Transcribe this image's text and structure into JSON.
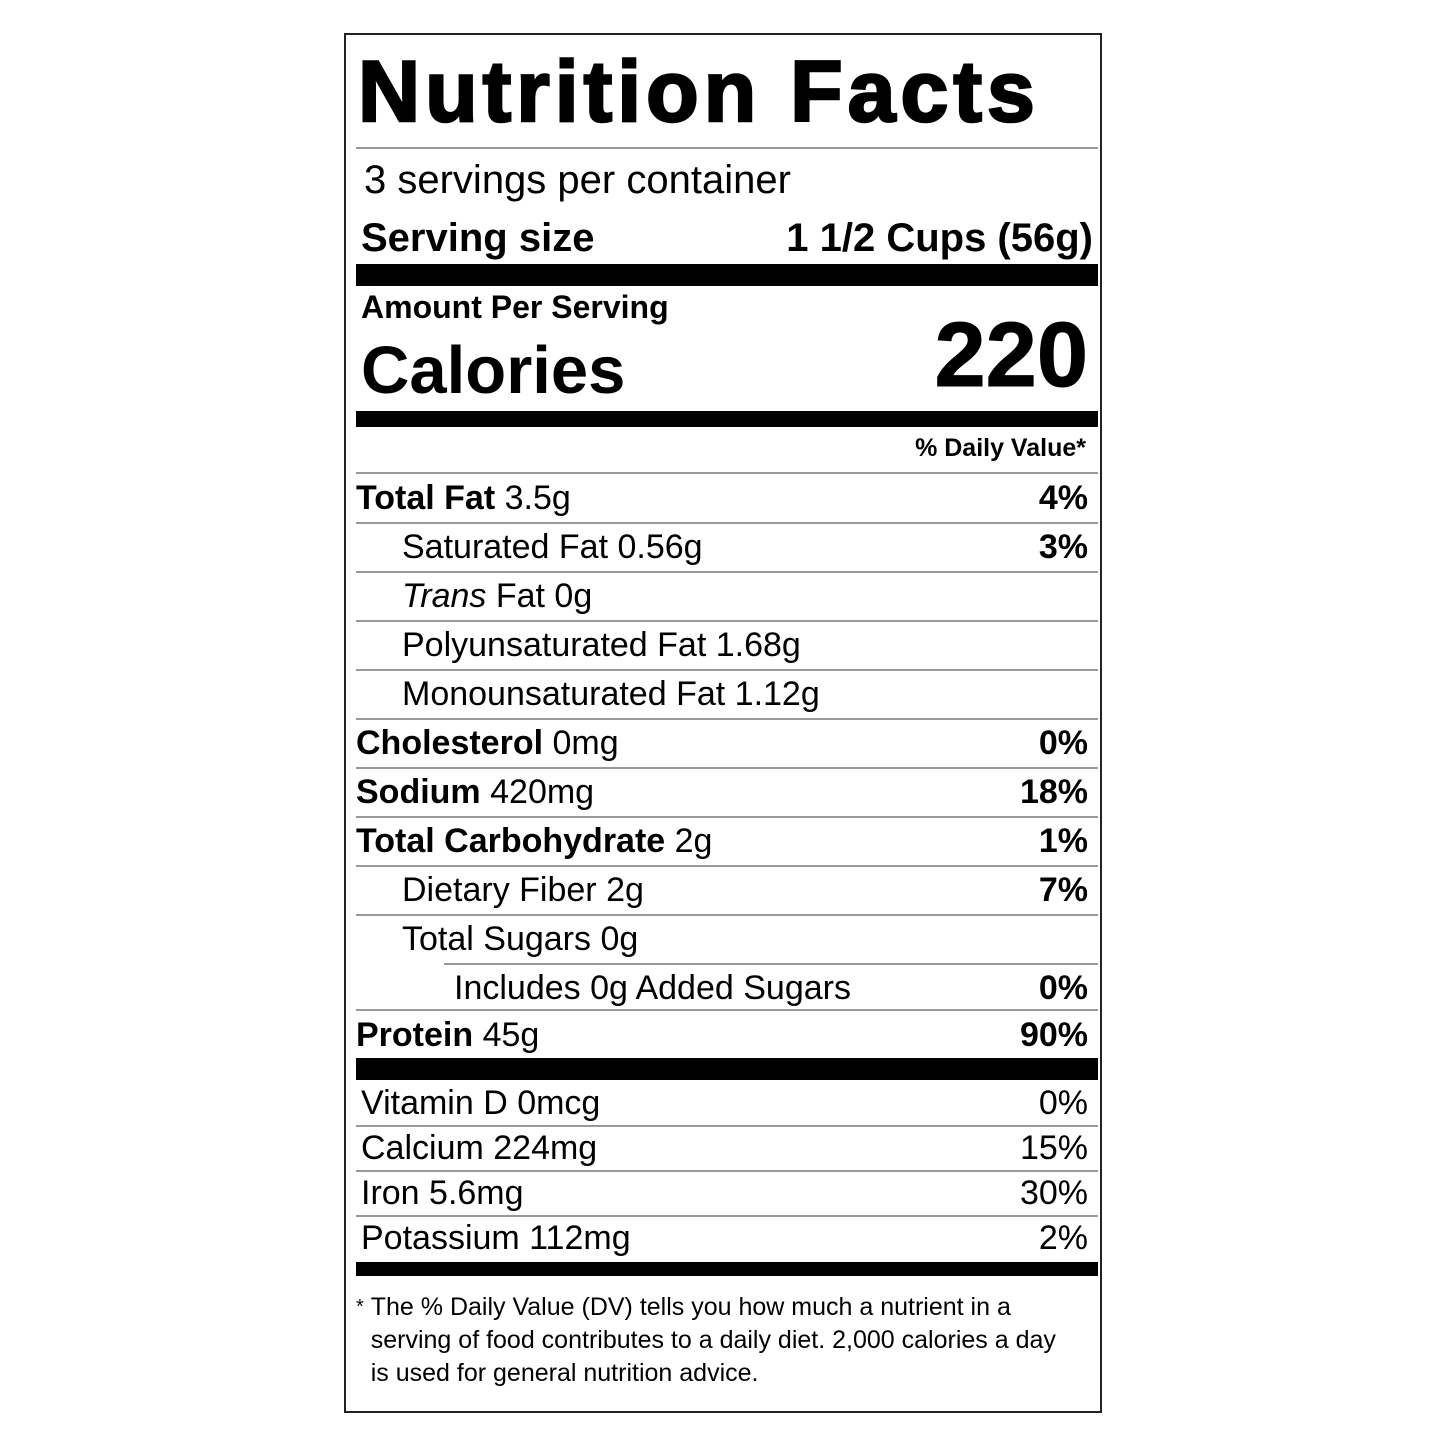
{
  "title": "Nutrition Facts",
  "servings_per_container": "3 servings per container",
  "serving_size_label": "Serving size",
  "serving_size_value": "1 1/2 Cups (56g)",
  "amount_per_serving": "Amount Per Serving",
  "calories_label": "Calories",
  "calories_value": "220",
  "daily_value_header": "% Daily Value*",
  "nutrients": [
    {
      "name": "Total Fat",
      "amount": "3.5g",
      "dv": "4%"
    },
    {
      "name": "Saturated Fat",
      "amount": "0.56g",
      "dv": "3%"
    },
    {
      "name_italic": "Trans",
      "name": "Fat",
      "amount": "0g",
      "dv": ""
    },
    {
      "name": "Polyunsaturated Fat",
      "amount": "1.68g",
      "dv": ""
    },
    {
      "name": "Monounsaturated Fat",
      "amount": "1.12g",
      "dv": ""
    },
    {
      "name": "Cholesterol",
      "amount": "0mg",
      "dv": "0%"
    },
    {
      "name": "Sodium",
      "amount": "420mg",
      "dv": "18%"
    },
    {
      "name": "Total Carbohydrate",
      "amount": "2g",
      "dv": "1%"
    },
    {
      "name": "Dietary Fiber",
      "amount": "2g",
      "dv": "7%"
    },
    {
      "name": "Total Sugars",
      "amount": "0g",
      "dv": ""
    },
    {
      "name": "Includes 0g Added Sugars",
      "amount": "",
      "dv": "0%"
    },
    {
      "name": "Protein",
      "amount": "45g",
      "dv": "90%"
    }
  ],
  "vitamins": [
    {
      "text": "Vitamin D 0mcg",
      "dv": "0%"
    },
    {
      "text": "Calcium 224mg",
      "dv": "15%"
    },
    {
      "text": "Iron 5.6mg",
      "dv": "30%"
    },
    {
      "text": "Potassium 112mg",
      "dv": "2%"
    }
  ],
  "footnote_star": "*",
  "footnote": "The % Daily Value (DV) tells you how much a nutrient in a serving of food contributes to a daily diet. 2,000 calories a day is used for general nutrition advice."
}
